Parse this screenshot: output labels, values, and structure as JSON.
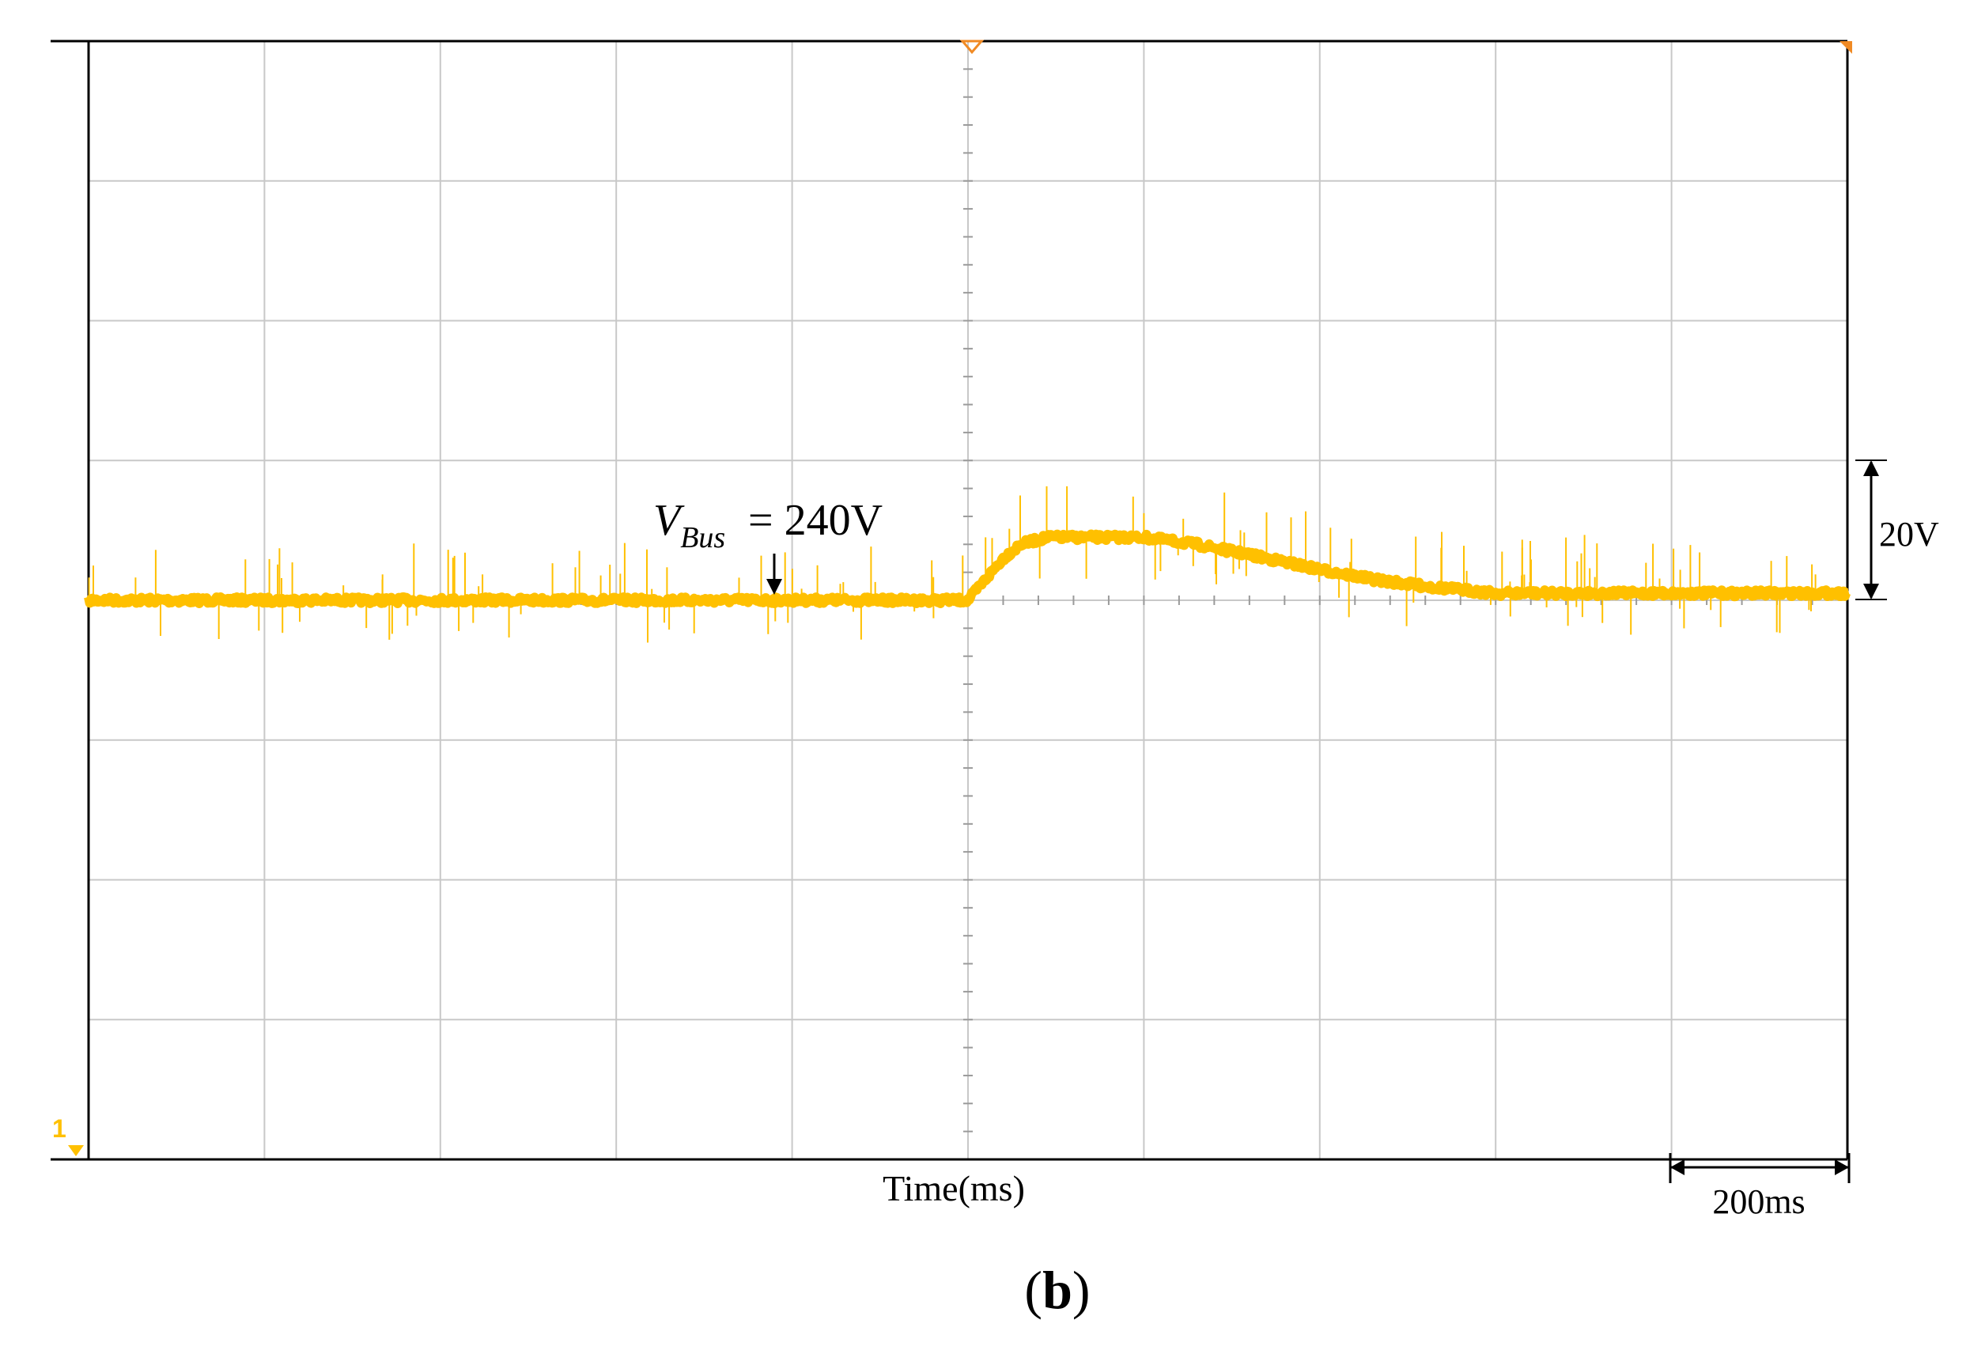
{
  "chart_data": {
    "type": "line",
    "title": "",
    "xlabel": "Time(ms)",
    "ylabel": "",
    "grid": true,
    "divisions": {
      "x": 10,
      "y": 8
    },
    "time_per_div": "200ms",
    "volt_per_div": "20V",
    "trace_color": "#FFC000",
    "channel_marker": "1",
    "annotation": {
      "var_main": "V",
      "var_sub": "Bus",
      "value": "= 240V"
    },
    "series": [
      {
        "x_div": [
          0,
          5.0,
          5.1,
          5.2,
          5.3,
          5.45,
          6.0,
          6.3,
          6.7,
          7.0,
          7.3,
          7.6,
          8.0,
          10
        ],
        "y_offset_div": [
          0,
          0,
          0.15,
          0.3,
          0.4,
          0.45,
          0.45,
          0.4,
          0.3,
          0.22,
          0.15,
          0.1,
          0.05,
          0.05
        ]
      }
    ]
  },
  "caption": {
    "open": "(",
    "letter": "b",
    "close": ")"
  }
}
